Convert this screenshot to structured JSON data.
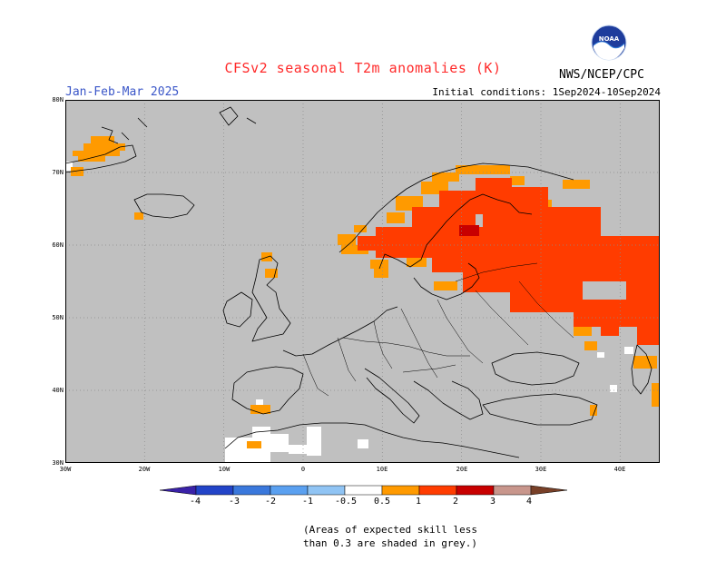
{
  "header": {
    "title": "CFSv2 seasonal T2m anomalies (K)",
    "organization": "NWS/NCEP/CPC",
    "period": "Jan-Feb-Mar 2025",
    "initial_conditions": "Initial conditions: 1Sep2024-10Sep2024",
    "logo_text": "NOAA"
  },
  "map": {
    "lat_labels": [
      "80N",
      "70N",
      "60N",
      "50N",
      "40N",
      "30N"
    ],
    "lon_labels": [
      "30W",
      "20W",
      "10W",
      "0",
      "10E",
      "20E",
      "30E",
      "40E"
    ],
    "background_grey": "#c0c0c0"
  },
  "colorbar": {
    "labels": [
      "-4",
      "-3",
      "-2",
      "-1",
      "-0.5",
      "0.5",
      "1",
      "2",
      "3",
      "4"
    ],
    "colors": [
      "#3a22a8",
      "#2244c8",
      "#3a78dc",
      "#5aa0f0",
      "#90c4f4",
      "#ffffff",
      "#ff9a00",
      "#ff3c00",
      "#c80000",
      "#c8968c",
      "#784028"
    ]
  },
  "footnote": {
    "line1": "(Areas of expected skill less",
    "line2": "than 0.3 are shaded in grey.)"
  }
}
